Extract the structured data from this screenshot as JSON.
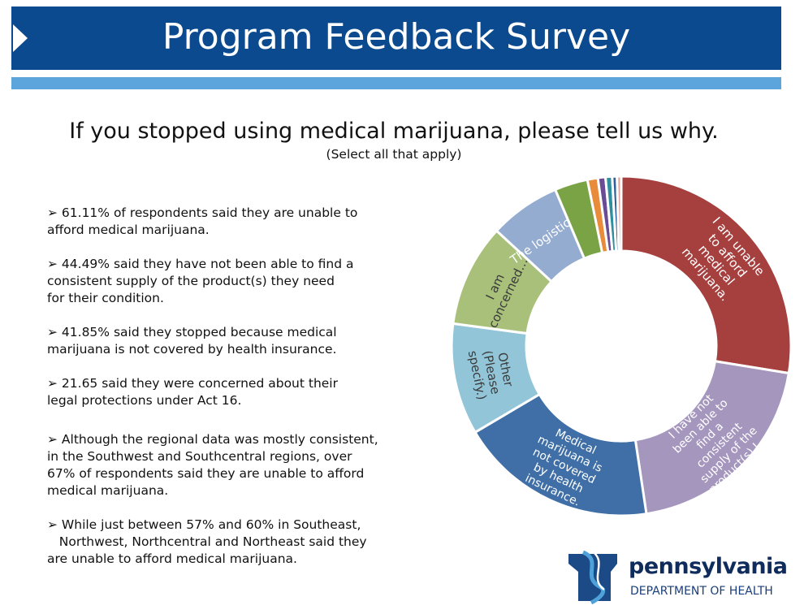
{
  "header": {
    "title": "Program Feedback Survey"
  },
  "question": "If you stopped using medical marijuana, please tell us why.",
  "instruction": "(Select all that apply)",
  "bullet_glyph": "➢",
  "bullets": [
    {
      "lines": [
        "61.11% of respondents said they are unable to",
        "afford medical marijuana."
      ]
    },
    {
      "lines": [
        "44.49% said they have not been able to find a",
        "consistent supply of the product(s) they need",
        "for their condition."
      ]
    },
    {
      "lines": [
        "41.85% said they stopped because medical",
        "marijuana is not covered by health insurance."
      ]
    },
    {
      "lines": [
        "21.65 said they were concerned about their",
        "legal protections under Act 16."
      ]
    },
    {
      "lines": [
        "Although the regional data was mostly consistent,",
        "in the Southwest and Southcentral regions, over",
        "67% of respondents said they are unable to afford",
        "medical marijuana."
      ]
    },
    {
      "lines": [
        "While just between 57% and 60% in Southeast,",
        "   Northwest, Northcentral and Northeast said they",
        "are unable to afford medical marijuana."
      ]
    }
  ],
  "chart_data": {
    "type": "pie",
    "donut": true,
    "title": "",
    "slices": [
      {
        "label": "I am unable to afford medical marijuana.",
        "display_lines": [
          "I am unable",
          "to afford",
          "medical",
          "marijuana."
        ],
        "value": 61.11,
        "color": "#a5403f"
      },
      {
        "label": "I have not been able to find a consistent supply of the product(s) I…",
        "display_lines": [
          "I have not",
          "been able to",
          "find a",
          "consistent",
          "supply of the",
          "product(s) I…"
        ],
        "value": 44.49,
        "color": "#a596be"
      },
      {
        "label": "Medical marijuana is not covered by health insurance.",
        "display_lines": [
          "Medical",
          "marijuana is",
          "not covered",
          "by health",
          "insurance."
        ],
        "value": 41.85,
        "color": "#3f6fa6"
      },
      {
        "label": "Other (Please specify.)",
        "display_lines": [
          "Other",
          "(Please",
          "specify.)"
        ],
        "value": 23.5,
        "color": "#93c5d9"
      },
      {
        "label": "I am concerned…",
        "display_lines": [
          "I am",
          "concerned…"
        ],
        "value": 21.65,
        "color": "#a8c07a"
      },
      {
        "label": "The logistic…",
        "display_lines": [
          "The logistic…"
        ],
        "value": 15.0,
        "color": "#95acd1"
      },
      {
        "label": "",
        "display_lines": [],
        "value": 7.0,
        "color": "#7aa346"
      },
      {
        "label": "",
        "display_lines": [],
        "value": 2.2,
        "color": "#e88b3a"
      },
      {
        "label": "",
        "display_lines": [],
        "value": 1.6,
        "color": "#6a4c96"
      },
      {
        "label": "",
        "display_lines": [],
        "value": 1.4,
        "color": "#2f8f9e"
      },
      {
        "label": "",
        "display_lines": [],
        "value": 1.0,
        "color": "#2e5f9a"
      },
      {
        "label": "",
        "display_lines": [],
        "value": 0.9,
        "color": "#e0a6a0"
      }
    ]
  },
  "logo": {
    "word": "pennsylvania",
    "department": "DEPARTMENT OF HEALTH",
    "colors": {
      "keystone": "#1b4a86",
      "swoosh": "#4ea2d9",
      "text": "#0f2c5c"
    }
  }
}
